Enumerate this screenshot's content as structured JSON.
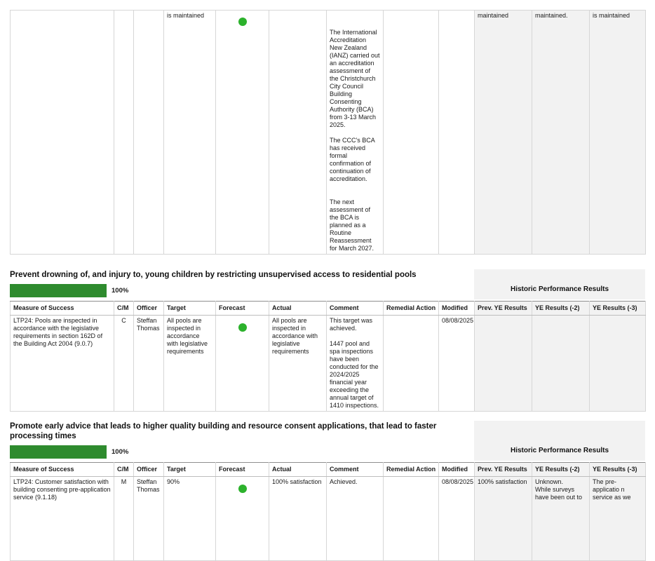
{
  "colors": {
    "status_green": "#2cb22c",
    "progress_green": "#2e8b2e",
    "historic_bg": "#f2f2f2"
  },
  "table_columns": [
    "Measure of Success",
    "C/M",
    "Officer",
    "Target",
    "Forecast",
    "Actual",
    "Comment",
    "Remedial Action",
    "Modified",
    "Prev. YE Results",
    "YE Results (-2)",
    "YE Results (-3)"
  ],
  "historic_header_label": "Historic Performance Results",
  "continuation_row": {
    "measure": "",
    "cm": "",
    "officer": "",
    "target": "is maintained",
    "forecast_icon": "green-status-dot",
    "actual": "",
    "comment_paragraphs": [
      "The International Accreditation New Zealand (IANZ) carried out an accreditation assessment of the Christchurch City Council Building Consenting Authority (BCA) from 3-13 March 2025.",
      "The CCC's BCA has received formal confirmation of continuation of accreditation.",
      "The next assessment of the BCA is planned as a Routine Reassessment for March 2027."
    ],
    "remedial_action": "",
    "modified": "",
    "prev_ye_results": "maintained",
    "ye_results_minus2": "maintained.",
    "ye_results_minus3": "is maintained"
  },
  "sections": [
    {
      "heading": "Prevent drowning of, and injury to, young children by restricting unsupervised access to residential pools",
      "progress_percent": 100,
      "progress_label": "100%",
      "rows": [
        {
          "measure": "LTP24: Pools are inspected in accordance with the legislative requirements in section 162D of the Building Act 2004 (9.0.7)",
          "cm": "C",
          "officer": "Steffan Thomas",
          "target": "All pools are inspected in accordance with legislative requirements",
          "forecast_icon": "green-status-dot",
          "actual": "All pools are inspected in accordance with legislative requirements",
          "comment_paragraphs": [
            "This target was achieved.",
            "1447 pool and spa inspections have been conducted for the 2024/2025 financial year exceeding the annual target of 1410 inspections."
          ],
          "remedial_action": "",
          "modified": "08/08/2025",
          "prev_ye_results": "",
          "ye_results_minus2_paragraphs": [],
          "ye_results_minus3_paragraphs": []
        }
      ]
    },
    {
      "heading": "Promote early advice that leads to higher quality building and resource consent applications, that lead to faster processing times",
      "progress_percent": 100,
      "progress_label": "100%",
      "rows": [
        {
          "measure": "LTP24: Customer satisfaction with building consenting pre-application service (9.1.18)",
          "cm": "M",
          "officer": "Steffan Thomas",
          "target": "90%",
          "forecast_icon": "green-status-dot",
          "actual": "100% satisfaction",
          "comment_paragraphs": [
            "Achieved."
          ],
          "remedial_action": "",
          "modified": "08/08/2025",
          "prev_ye_results": "100% satisfaction",
          "ye_results_minus2_paragraphs": [
            "Unknown.",
            "While surveys have been out to"
          ],
          "ye_results_minus3_paragraphs": [
            "The pre-applicatio n service as we"
          ]
        }
      ]
    }
  ]
}
